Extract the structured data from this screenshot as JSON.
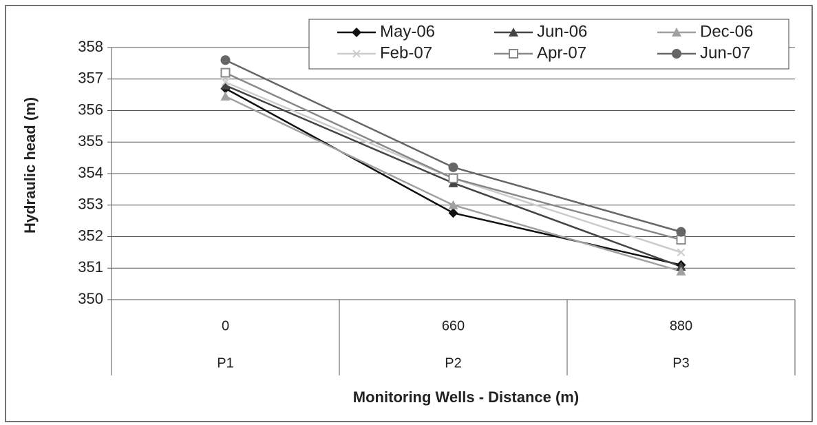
{
  "chart_data": {
    "type": "line",
    "x_title": "Monitoring Wells - Distance (m)",
    "y_title": "Hydraulic head (m)",
    "categories": [
      "0",
      "660",
      "880"
    ],
    "category_groups": [
      "P1",
      "P2",
      "P3"
    ],
    "ylim": [
      350,
      358
    ],
    "yticks": [
      350,
      351,
      352,
      353,
      354,
      355,
      356,
      357,
      358
    ],
    "grid": true,
    "legend": "top-right",
    "series": [
      {
        "name": "May-06",
        "color": "#111111",
        "marker": "diamond",
        "values": [
          356.7,
          352.75,
          351.1
        ]
      },
      {
        "name": "Jun-06",
        "color": "#444444",
        "marker": "triangle",
        "values": [
          356.8,
          353.7,
          351.05
        ]
      },
      {
        "name": "Dec-06",
        "color": "#a0a0a0",
        "marker": "triangle",
        "values": [
          356.45,
          353.0,
          350.9
        ]
      },
      {
        "name": "Feb-07",
        "color": "#cccccc",
        "marker": "x",
        "values": [
          356.9,
          353.85,
          351.5
        ]
      },
      {
        "name": "Apr-07",
        "color": "#888888",
        "marker": "square-open",
        "values": [
          357.2,
          353.85,
          351.9
        ]
      },
      {
        "name": "Jun-07",
        "color": "#666666",
        "marker": "circle",
        "values": [
          357.6,
          354.2,
          352.15
        ]
      }
    ]
  }
}
